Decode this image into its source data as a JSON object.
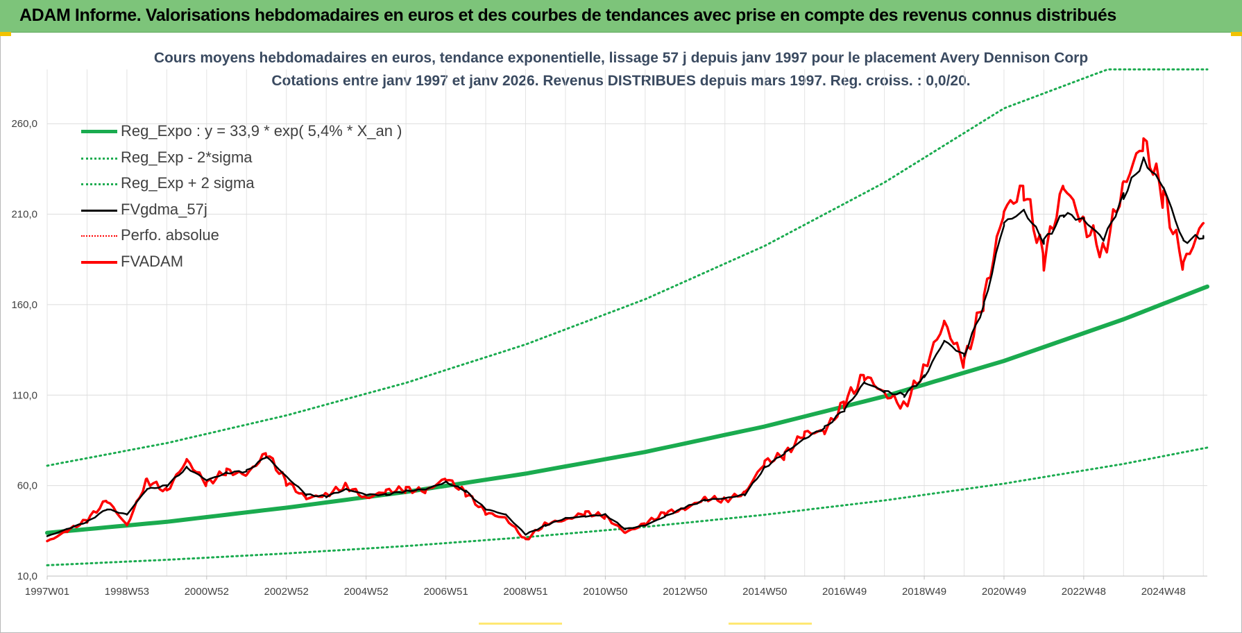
{
  "banner": {
    "title": "ADAM Informe. Valorisations hebdomadaires en euros et des courbes de tendances avec prise en compte des revenus connus distribués"
  },
  "colors": {
    "banner": "#7dc47a",
    "reg_green": "#1aab4f",
    "sigma_green": "#1aab4f",
    "moving_avg": "#000000",
    "fvadam": "#ff0000",
    "perfo": "#ff0000",
    "title_text": "#3a4a60"
  },
  "chart_data": {
    "type": "line",
    "title": "Cours moyens hebdomadaires en euros, tendance exponentielle, lissage 57 j depuis janv 1997 pour le placement Avery Dennison Corp",
    "subtitle": "Cotations entre janv 1997 et janv 2026. Revenus DISTRIBUES depuis mars 1997.  Reg. croiss. : 0,0/20.",
    "xlabel": "",
    "ylabel": "",
    "x_range": [
      1997.0,
      2026.1
    ],
    "ylim": [
      10,
      290
    ],
    "y_ticks": [
      "10,0",
      "60,0",
      "110,0",
      "160,0",
      "210,0",
      "260,0"
    ],
    "x_ticks": [
      {
        "label": "1997W01",
        "year": 1997.0
      },
      {
        "label": "1998W53",
        "year": 1999.0
      },
      {
        "label": "2000W52",
        "year": 2001.0
      },
      {
        "label": "2002W52",
        "year": 2003.0
      },
      {
        "label": "2004W52",
        "year": 2005.0
      },
      {
        "label": "2006W51",
        "year": 2007.0
      },
      {
        "label": "2008W51",
        "year": 2009.0
      },
      {
        "label": "2010W50",
        "year": 2011.0
      },
      {
        "label": "2012W50",
        "year": 2013.0
      },
      {
        "label": "2014W50",
        "year": 2015.0
      },
      {
        "label": "2016W49",
        "year": 2017.0
      },
      {
        "label": "2018W49",
        "year": 2019.0
      },
      {
        "label": "2020W49",
        "year": 2021.0
      },
      {
        "label": "2022W48",
        "year": 2023.0
      },
      {
        "label": "2024W48",
        "year": 2025.0
      }
    ],
    "grid": true,
    "legend_position": "top-left",
    "series": [
      {
        "name": "Reg_Expo : y = 33,9 * exp( 5,4% *  X_an )",
        "style": "thick-solid",
        "x": [
          1997.0,
          2000.0,
          2003.0,
          2006.0,
          2009.0,
          2012.0,
          2015.0,
          2018.0,
          2021.0,
          2024.0,
          2026.1
        ],
        "y": [
          33.9,
          40.0,
          47.8,
          56.5,
          66.6,
          78.6,
          92.7,
          109.3,
          128.9,
          151.9,
          170.0
        ]
      },
      {
        "name": "Reg_Exp - 2*sigma",
        "style": "dotted",
        "x": [
          1997.0,
          2000.0,
          2003.0,
          2006.0,
          2009.0,
          2012.0,
          2015.0,
          2018.0,
          2021.0,
          2024.0,
          2026.1
        ],
        "y": [
          16.0,
          19.0,
          22.5,
          26.6,
          31.5,
          37.2,
          43.9,
          51.8,
          61.1,
          72.0,
          81.0
        ]
      },
      {
        "name": "Reg_Exp + 2 sigma",
        "style": "dotted",
        "x": [
          1997.0,
          2000.0,
          2003.0,
          2006.0,
          2009.0,
          2012.0,
          2015.0,
          2018.0,
          2021.0,
          2023.6,
          2026.1
        ],
        "y": [
          71.0,
          83.5,
          98.8,
          116.8,
          138.0,
          163.0,
          192.5,
          227.5,
          268.5,
          290.0,
          290.0
        ]
      },
      {
        "name": "FVgdma_57j",
        "style": "solid",
        "x": [
          1997.0,
          1997.5,
          1998.0,
          1998.5,
          1999.0,
          1999.5,
          2000.0,
          2000.5,
          2001.0,
          2001.5,
          2002.0,
          2002.5,
          2003.0,
          2003.5,
          2004.0,
          2004.5,
          2005.0,
          2005.5,
          2006.0,
          2006.5,
          2007.0,
          2007.5,
          2008.0,
          2008.5,
          2009.0,
          2009.5,
          2010.0,
          2010.5,
          2011.0,
          2011.5,
          2012.0,
          2012.5,
          2013.0,
          2013.5,
          2014.0,
          2014.5,
          2015.0,
          2015.5,
          2016.0,
          2016.5,
          2017.0,
          2017.5,
          2018.0,
          2018.5,
          2019.0,
          2019.5,
          2020.0,
          2020.5,
          2021.0,
          2021.5,
          2022.0,
          2022.5,
          2023.0,
          2023.5,
          2024.0,
          2024.5,
          2025.0,
          2025.5,
          2026.0
        ],
        "y": [
          32,
          36,
          40,
          47,
          44,
          58,
          60,
          70,
          63,
          67,
          68,
          76,
          65,
          55,
          54,
          58,
          55,
          55,
          57,
          58,
          62,
          57,
          47,
          44,
          33,
          38,
          42,
          43,
          44,
          36,
          38,
          43,
          48,
          52,
          53,
          55,
          70,
          78,
          86,
          92,
          102,
          117,
          112,
          110,
          120,
          140,
          132,
          160,
          205,
          212,
          195,
          210,
          207,
          196,
          220,
          240,
          225,
          195,
          198
        ]
      },
      {
        "name": "Perfo. absolue",
        "style": "dotted",
        "x": [],
        "y": []
      },
      {
        "name": "FVADAM",
        "style": "thick-solid",
        "x": [
          1997.0,
          1997.5,
          1998.0,
          1998.5,
          1999.0,
          1999.5,
          2000.0,
          2000.5,
          2001.0,
          2001.5,
          2002.0,
          2002.5,
          2003.0,
          2003.5,
          2004.0,
          2004.5,
          2005.0,
          2005.5,
          2006.0,
          2006.5,
          2007.0,
          2007.5,
          2008.0,
          2008.5,
          2009.0,
          2009.5,
          2010.0,
          2010.5,
          2011.0,
          2011.5,
          2012.0,
          2012.5,
          2013.0,
          2013.5,
          2014.0,
          2014.5,
          2015.0,
          2015.5,
          2016.0,
          2016.5,
          2017.0,
          2017.5,
          2018.0,
          2018.5,
          2019.0,
          2019.5,
          2020.0,
          2020.5,
          2021.0,
          2021.5,
          2022.0,
          2022.5,
          2023.0,
          2023.5,
          2024.0,
          2024.5,
          2025.0,
          2025.5,
          2026.0
        ],
        "y": [
          29,
          35,
          41,
          52,
          38,
          63,
          57,
          74,
          61,
          68,
          66,
          78,
          62,
          53,
          55,
          60,
          53,
          57,
          58,
          57,
          64,
          56,
          45,
          42,
          30,
          39,
          41,
          45,
          43,
          34,
          39,
          45,
          47,
          53,
          52,
          56,
          73,
          77,
          89,
          90,
          106,
          121,
          111,
          104,
          125,
          150,
          128,
          163,
          212,
          224,
          185,
          226,
          205,
          189,
          226,
          250,
          220,
          182,
          205
        ]
      }
    ]
  }
}
